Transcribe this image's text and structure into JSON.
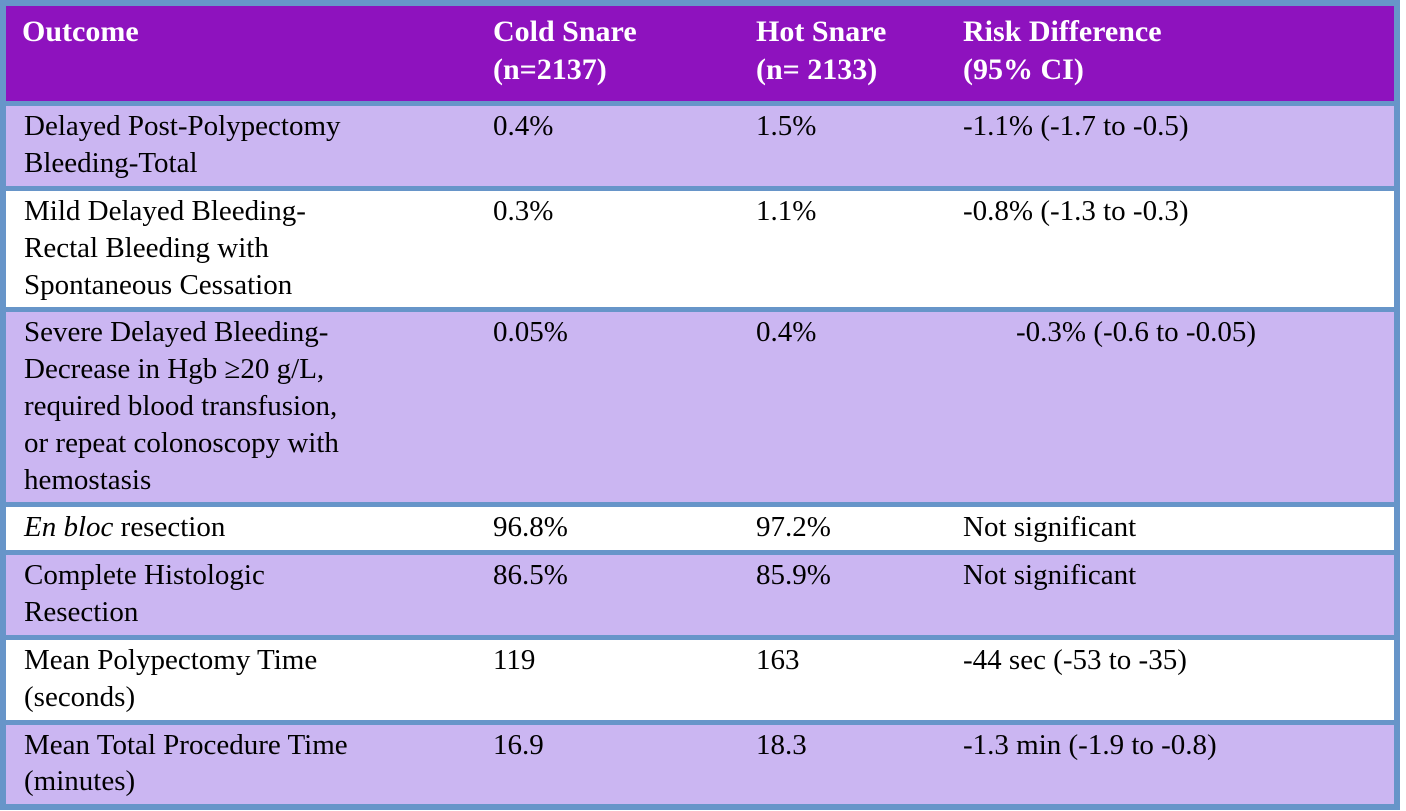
{
  "chart_data": {
    "type": "table",
    "columns": [
      "Outcome",
      "Cold Snare\n(n=2137)",
      "Hot Snare\n(n= 2133)",
      "Risk Difference\n(95% CI)"
    ],
    "rows": [
      {
        "outcome": "Delayed Post-Polypectomy\nBleeding-Total",
        "cold_snare": "0.4%",
        "hot_snare": "1.5%",
        "risk_difference": "-1.1% (-1.7 to -0.5)"
      },
      {
        "outcome": "Mild Delayed Bleeding-\nRectal Bleeding with\nSpontaneous Cessation",
        "cold_snare": "0.3%",
        "hot_snare": "1.1%",
        "risk_difference": "-0.8% (-1.3 to -0.3)"
      },
      {
        "outcome": "Severe Delayed Bleeding-\nDecrease in Hgb ≥20 g/L,\nrequired blood transfusion,\nor repeat colonoscopy with\nhemostasis",
        "cold_snare": "0.05%",
        "hot_snare": "0.4%",
        "risk_difference": "-0.3% (-0.6 to -0.05)"
      },
      {
        "outcome_italic": "En bloc",
        "outcome_rest": "resection",
        "cold_snare": "96.8%",
        "hot_snare": "97.2%",
        "risk_difference": "Not significant"
      },
      {
        "outcome": "Complete Histologic\nResection",
        "cold_snare": "86.5%",
        "hot_snare": "85.9%",
        "risk_difference": "Not significant"
      },
      {
        "outcome": "Mean Polypectomy Time\n(seconds)",
        "cold_snare": "119",
        "hot_snare": "163",
        "risk_difference": "-44 sec (-53 to -35)"
      },
      {
        "outcome": "Mean Total Procedure Time\n(minutes)",
        "cold_snare": "16.9",
        "hot_snare": "18.3",
        "risk_difference": "-1.3 min (-1.9 to -0.8)"
      }
    ],
    "layout": {
      "legend": "none",
      "grid": "horizontal-row-separators",
      "header_bg": "#8E12BE",
      "header_text_color": "#FFFFFF",
      "alt_row_bg": "#CBB6F2",
      "plain_row_bg": "#FFFFFF",
      "border_color": "#6795C9",
      "body_text_color": "#000000"
    }
  }
}
